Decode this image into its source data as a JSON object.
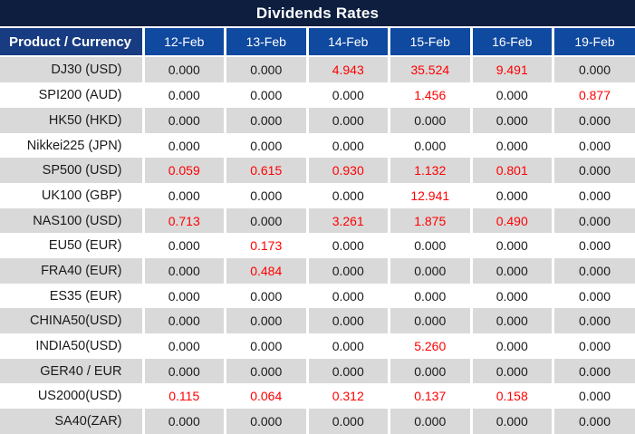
{
  "title": "Dividends Rates",
  "colors": {
    "title_bg": "#0D1E3E",
    "product_header_bg": "#173C82",
    "date_header_bg": "#0F49A0",
    "row_alt_bg": "#D9D9D9",
    "row_bg": "#FFFFFF",
    "header_text": "#FFFFFF",
    "value_zero_text": "#1A1A1A",
    "value_nonzero_text": "#FF0000",
    "grid_border": "#FFFFFF"
  },
  "chart_data": {
    "type": "table",
    "title": "Dividends Rates",
    "columns": [
      "Product / Currency",
      "12-Feb",
      "13-Feb",
      "14-Feb",
      "15-Feb",
      "16-Feb",
      "19-Feb"
    ],
    "rows": [
      {
        "product": "DJ30 (USD)",
        "values": [
          "0.000",
          "0.000",
          "4.943",
          "35.524",
          "9.491",
          "0.000"
        ]
      },
      {
        "product": "SPI200 (AUD)",
        "values": [
          "0.000",
          "0.000",
          "0.000",
          "1.456",
          "0.000",
          "0.877"
        ]
      },
      {
        "product": "HK50 (HKD)",
        "values": [
          "0.000",
          "0.000",
          "0.000",
          "0.000",
          "0.000",
          "0.000"
        ]
      },
      {
        "product": "Nikkei225 (JPN)",
        "values": [
          "0.000",
          "0.000",
          "0.000",
          "0.000",
          "0.000",
          "0.000"
        ]
      },
      {
        "product": "SP500 (USD)",
        "values": [
          "0.059",
          "0.615",
          "0.930",
          "1.132",
          "0.801",
          "0.000"
        ]
      },
      {
        "product": "UK100 (GBP)",
        "values": [
          "0.000",
          "0.000",
          "0.000",
          "12.941",
          "0.000",
          "0.000"
        ]
      },
      {
        "product": "NAS100 (USD)",
        "values": [
          "0.713",
          "0.000",
          "3.261",
          "1.875",
          "0.490",
          "0.000"
        ]
      },
      {
        "product": "EU50 (EUR)",
        "values": [
          "0.000",
          "0.173",
          "0.000",
          "0.000",
          "0.000",
          "0.000"
        ]
      },
      {
        "product": "FRA40 (EUR)",
        "values": [
          "0.000",
          "0.484",
          "0.000",
          "0.000",
          "0.000",
          "0.000"
        ]
      },
      {
        "product": "ES35 (EUR)",
        "values": [
          "0.000",
          "0.000",
          "0.000",
          "0.000",
          "0.000",
          "0.000"
        ]
      },
      {
        "product": "CHINA50(USD)",
        "values": [
          "0.000",
          "0.000",
          "0.000",
          "0.000",
          "0.000",
          "0.000"
        ]
      },
      {
        "product": "INDIA50(USD)",
        "values": [
          "0.000",
          "0.000",
          "0.000",
          "5.260",
          "0.000",
          "0.000"
        ]
      },
      {
        "product": "GER40 / EUR",
        "values": [
          "0.000",
          "0.000",
          "0.000",
          "0.000",
          "0.000",
          "0.000"
        ]
      },
      {
        "product": "US2000(USD)",
        "values": [
          "0.115",
          "0.064",
          "0.312",
          "0.137",
          "0.158",
          "0.000"
        ]
      },
      {
        "product": "SA40(ZAR)",
        "values": [
          "0.000",
          "0.000",
          "0.000",
          "0.000",
          "0.000",
          "0.000"
        ]
      }
    ]
  }
}
